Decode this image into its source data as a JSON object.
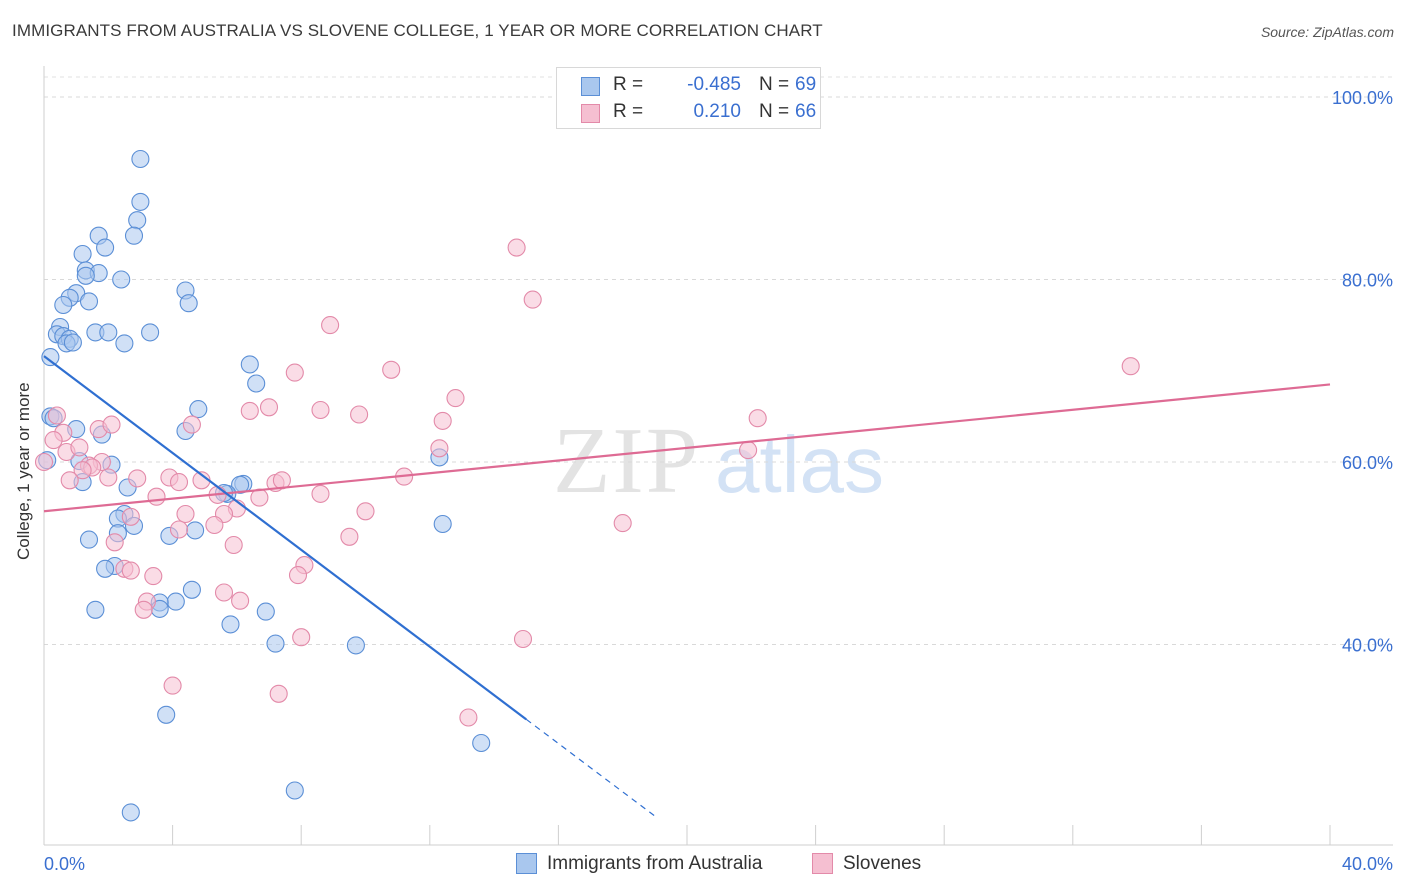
{
  "title": "IMMIGRANTS FROM AUSTRALIA VS SLOVENE COLLEGE, 1 YEAR OR MORE CORRELATION CHART",
  "source": "Source: ZipAtlas.com",
  "watermark": {
    "zip": "ZIP",
    "atlas": "atlas"
  },
  "colors": {
    "blue_fill": "#a9c7ee",
    "blue_stroke": "#5b8fd6",
    "blue_line": "#2f6fd1",
    "pink_fill": "#f5bfd1",
    "pink_stroke": "#e38aa9",
    "pink_line": "#de6b94",
    "tick_text": "#3a6fd0",
    "grid": "#d9d9d9"
  },
  "legend_top": [
    {
      "r_label": "R =",
      "r_value": "-0.485",
      "n_label": "N =",
      "n_value": "69"
    },
    {
      "r_label": "R =",
      "r_value": "0.210",
      "n_label": "N =",
      "n_value": "66"
    }
  ],
  "legend_bottom": [
    "Immigrants from Australia",
    "Slovenes"
  ],
  "chart_data": {
    "type": "scatter",
    "title": "IMMIGRANTS FROM AUSTRALIA VS SLOVENE COLLEGE, 1 YEAR OR MORE CORRELATION CHART",
    "xlabel": "",
    "ylabel": "College, 1 year or more",
    "xlim": [
      0,
      40
    ],
    "ylim": [
      20,
      102
    ],
    "x_tick_labels": [
      "0.0%",
      "40.0%"
    ],
    "y_ticks": [
      40,
      60,
      80,
      100
    ],
    "y_tick_labels": [
      "40.0%",
      "60.0%",
      "80.0%",
      "100.0%"
    ],
    "grid": true,
    "legend_position": "bottom",
    "series": [
      {
        "name": "Immigrants from Australia",
        "r": -0.485,
        "n": 69,
        "trend": {
          "x": [
            0,
            15
          ],
          "y": [
            71.6,
            31.8
          ]
        },
        "trend_extension": {
          "x": [
            15,
            19
          ],
          "y": [
            31.8,
            21.2
          ]
        },
        "points": [
          [
            3.0,
            93.2
          ],
          [
            3.0,
            88.5
          ],
          [
            2.9,
            86.5
          ],
          [
            2.8,
            84.8
          ],
          [
            1.7,
            84.8
          ],
          [
            1.9,
            83.5
          ],
          [
            1.2,
            82.8
          ],
          [
            1.3,
            81.0
          ],
          [
            1.7,
            80.7
          ],
          [
            1.3,
            80.4
          ],
          [
            2.4,
            80.0
          ],
          [
            4.4,
            78.8
          ],
          [
            1.0,
            78.5
          ],
          [
            0.8,
            78.0
          ],
          [
            1.4,
            77.6
          ],
          [
            0.6,
            77.2
          ],
          [
            4.5,
            77.4
          ],
          [
            0.5,
            74.8
          ],
          [
            1.6,
            74.2
          ],
          [
            2.0,
            74.2
          ],
          [
            3.3,
            74.2
          ],
          [
            0.4,
            74.0
          ],
          [
            0.6,
            73.8
          ],
          [
            0.8,
            73.5
          ],
          [
            0.7,
            73.0
          ],
          [
            0.9,
            73.1
          ],
          [
            2.5,
            73.0
          ],
          [
            0.2,
            71.5
          ],
          [
            6.4,
            70.7
          ],
          [
            6.6,
            68.6
          ],
          [
            4.8,
            65.8
          ],
          [
            0.2,
            65.0
          ],
          [
            1.0,
            63.6
          ],
          [
            1.8,
            63.0
          ],
          [
            4.4,
            63.4
          ],
          [
            1.1,
            60.1
          ],
          [
            2.1,
            59.7
          ],
          [
            12.3,
            60.5
          ],
          [
            6.2,
            57.6
          ],
          [
            6.1,
            57.5
          ],
          [
            2.6,
            57.2
          ],
          [
            5.7,
            56.5
          ],
          [
            5.6,
            56.6
          ],
          [
            2.5,
            54.3
          ],
          [
            2.3,
            53.8
          ],
          [
            2.8,
            53.0
          ],
          [
            2.3,
            52.2
          ],
          [
            12.4,
            53.2
          ],
          [
            4.7,
            52.5
          ],
          [
            1.4,
            51.5
          ],
          [
            3.9,
            51.9
          ],
          [
            2.2,
            48.6
          ],
          [
            1.9,
            48.3
          ],
          [
            4.6,
            46.0
          ],
          [
            4.1,
            44.7
          ],
          [
            3.6,
            44.6
          ],
          [
            3.6,
            43.9
          ],
          [
            1.6,
            43.8
          ],
          [
            6.9,
            43.6
          ],
          [
            5.8,
            42.2
          ],
          [
            7.2,
            40.1
          ],
          [
            9.7,
            39.9
          ],
          [
            3.8,
            32.3
          ],
          [
            13.6,
            29.2
          ],
          [
            7.8,
            24.0
          ],
          [
            2.7,
            21.6
          ],
          [
            0.1,
            60.2
          ],
          [
            0.3,
            64.8
          ],
          [
            1.2,
            57.8
          ]
        ]
      },
      {
        "name": "Slovenes",
        "r": 0.21,
        "n": 66,
        "trend": {
          "x": [
            0,
            40
          ],
          "y": [
            54.6,
            68.5
          ]
        },
        "points": [
          [
            14.7,
            83.5
          ],
          [
            15.2,
            77.8
          ],
          [
            33.8,
            70.5
          ],
          [
            8.9,
            75.0
          ],
          [
            10.8,
            70.1
          ],
          [
            7.8,
            69.8
          ],
          [
            12.8,
            67.0
          ],
          [
            7.0,
            66.0
          ],
          [
            6.4,
            65.6
          ],
          [
            8.6,
            65.7
          ],
          [
            9.8,
            65.2
          ],
          [
            12.4,
            64.5
          ],
          [
            22.2,
            64.8
          ],
          [
            0.4,
            65.1
          ],
          [
            1.7,
            63.6
          ],
          [
            2.1,
            64.1
          ],
          [
            4.6,
            64.1
          ],
          [
            0.6,
            63.2
          ],
          [
            0.3,
            62.4
          ],
          [
            12.3,
            61.5
          ],
          [
            21.9,
            61.3
          ],
          [
            0.7,
            61.1
          ],
          [
            1.1,
            61.6
          ],
          [
            1.8,
            60.0
          ],
          [
            1.4,
            59.6
          ],
          [
            1.5,
            59.4
          ],
          [
            1.2,
            59.1
          ],
          [
            11.2,
            58.4
          ],
          [
            2.0,
            58.3
          ],
          [
            2.9,
            58.2
          ],
          [
            3.9,
            58.3
          ],
          [
            4.9,
            58.0
          ],
          [
            0.8,
            58.0
          ],
          [
            7.2,
            57.7
          ],
          [
            4.2,
            57.8
          ],
          [
            3.5,
            56.2
          ],
          [
            5.4,
            56.4
          ],
          [
            6.7,
            56.1
          ],
          [
            8.6,
            56.5
          ],
          [
            6.0,
            54.9
          ],
          [
            5.6,
            54.3
          ],
          [
            10.0,
            54.6
          ],
          [
            2.7,
            54.0
          ],
          [
            4.4,
            54.3
          ],
          [
            5.3,
            53.1
          ],
          [
            4.2,
            52.6
          ],
          [
            18.0,
            53.3
          ],
          [
            9.5,
            51.8
          ],
          [
            5.9,
            50.9
          ],
          [
            2.2,
            51.2
          ],
          [
            2.5,
            48.3
          ],
          [
            2.7,
            48.1
          ],
          [
            8.1,
            48.7
          ],
          [
            7.9,
            47.6
          ],
          [
            3.4,
            47.5
          ],
          [
            5.6,
            45.7
          ],
          [
            6.1,
            44.8
          ],
          [
            3.2,
            44.7
          ],
          [
            3.1,
            43.8
          ],
          [
            8.0,
            40.8
          ],
          [
            14.9,
            40.6
          ],
          [
            4.0,
            35.5
          ],
          [
            7.3,
            34.6
          ],
          [
            13.2,
            32.0
          ],
          [
            0.0,
            60.0
          ],
          [
            7.4,
            58.0
          ]
        ]
      }
    ]
  }
}
